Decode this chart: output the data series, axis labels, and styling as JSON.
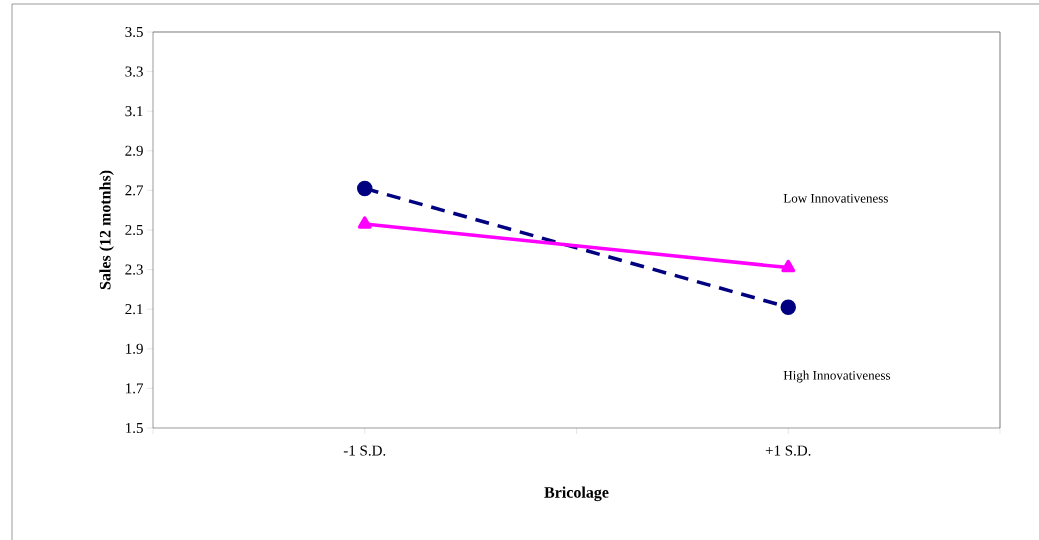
{
  "chart_data": {
    "type": "line",
    "xlabel": "Bricolage",
    "ylabel": "Sales   (12 motnhs)",
    "categories": [
      "-1 S.D.",
      "+1 S.D."
    ],
    "series": [
      {
        "color": "#000080",
        "values": [
          2.71,
          2.11
        ],
        "marker": "circle",
        "line_style": "dashed"
      },
      {
        "color": "#ff00ff",
        "values": [
          2.53,
          2.31
        ],
        "marker": "triangle",
        "line_style": "solid"
      }
    ],
    "ylim": [
      1.5,
      3.5
    ],
    "yticks": [
      1.5,
      1.7,
      1.9,
      2.1,
      2.3,
      2.5,
      2.7,
      2.9,
      3.1,
      3.3,
      3.5
    ],
    "annotations": [
      "Low Innovativeness",
      "High Innovativeness"
    ],
    "grid": false
  }
}
